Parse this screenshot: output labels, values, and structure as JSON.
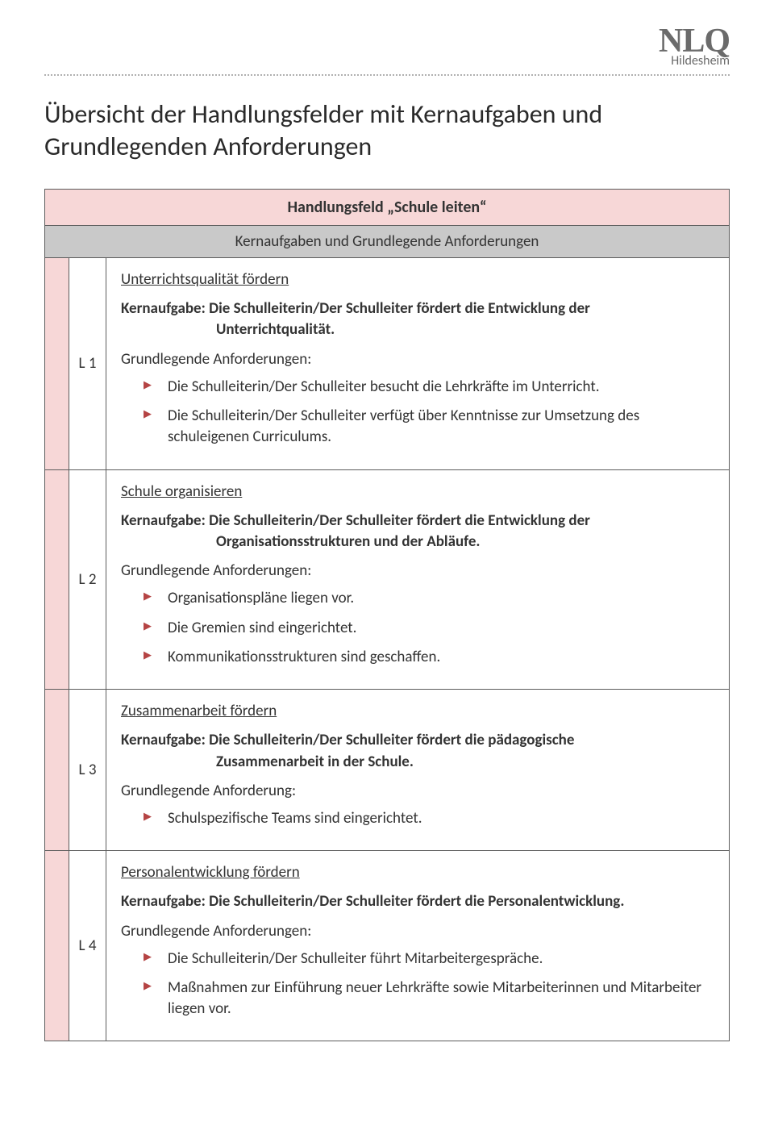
{
  "logo": {
    "main": "NLQ",
    "sub": "Hildesheim"
  },
  "title": "Übersicht der Handlungsfelder mit Kernaufgaben und Grundlegenden Anforderungen",
  "table": {
    "header_title": "Handlungsfeld „Schule leiten“",
    "header_sub": "Kernaufgaben und Grundlegende Anforderungen",
    "rows": [
      {
        "code": "L 1",
        "section": "Unterrichtsqualität fördern",
        "kern_label": "Kernaufgabe:",
        "kern_text_line1": "Die Schulleiterin/Der Schulleiter fördert die Entwicklung der",
        "kern_text_line2": "Unterrichtqualität.",
        "ga_label": "Grundlegende Anforderungen:",
        "bullets": [
          "Die Schulleiterin/Der Schulleiter besucht die Lehrkräfte im Unterricht.",
          "Die Schulleiterin/Der Schulleiter verfügt über Kenntnisse zur Umsetzung des schuleigenen Curriculums."
        ]
      },
      {
        "code": "L 2",
        "section": "Schule organisieren",
        "kern_label": "Kernaufgabe:",
        "kern_text_line1": "Die Schulleiterin/Der Schulleiter fördert die Entwicklung der",
        "kern_text_line2": "Organisationsstrukturen und der Abläufe.",
        "ga_label": "Grundlegende Anforderungen:",
        "bullets": [
          "Organisationspläne liegen vor.",
          "Die Gremien sind eingerichtet.",
          "Kommunikationsstrukturen sind geschaffen."
        ]
      },
      {
        "code": "L 3",
        "section": "Zusammenarbeit fördern",
        "kern_label": "Kernaufgabe:",
        "kern_text_line1": "Die Schulleiterin/Der Schulleiter fördert die pädagogische",
        "kern_text_line2": "Zusammenarbeit in der Schule.",
        "ga_label": "Grundlegende Anforderung:",
        "bullets": [
          "Schulspezifische Teams sind eingerichtet."
        ]
      },
      {
        "code": "L 4",
        "section": "Personalentwicklung fördern",
        "kern_label": "Kernaufgabe:",
        "kern_text_line1": "Die Schulleiterin/Der Schulleiter fördert die Personalentwicklung.",
        "kern_text_line2": "",
        "ga_label": "Grundlegende Anforderungen:",
        "bullets": [
          "Die Schulleiterin/Der Schulleiter führt Mitarbeitergespräche.",
          "Maßnahmen zur Einführung neuer Lehrkräfte sowie Mitarbeiterinnen und Mitarbeiter liegen vor."
        ]
      }
    ]
  },
  "colors": {
    "pink": "#f7d7d7",
    "gray": "#c9c9c9",
    "bullet": "#b54444",
    "logo": "#6b6b6b",
    "border": "#5c5c5c"
  }
}
